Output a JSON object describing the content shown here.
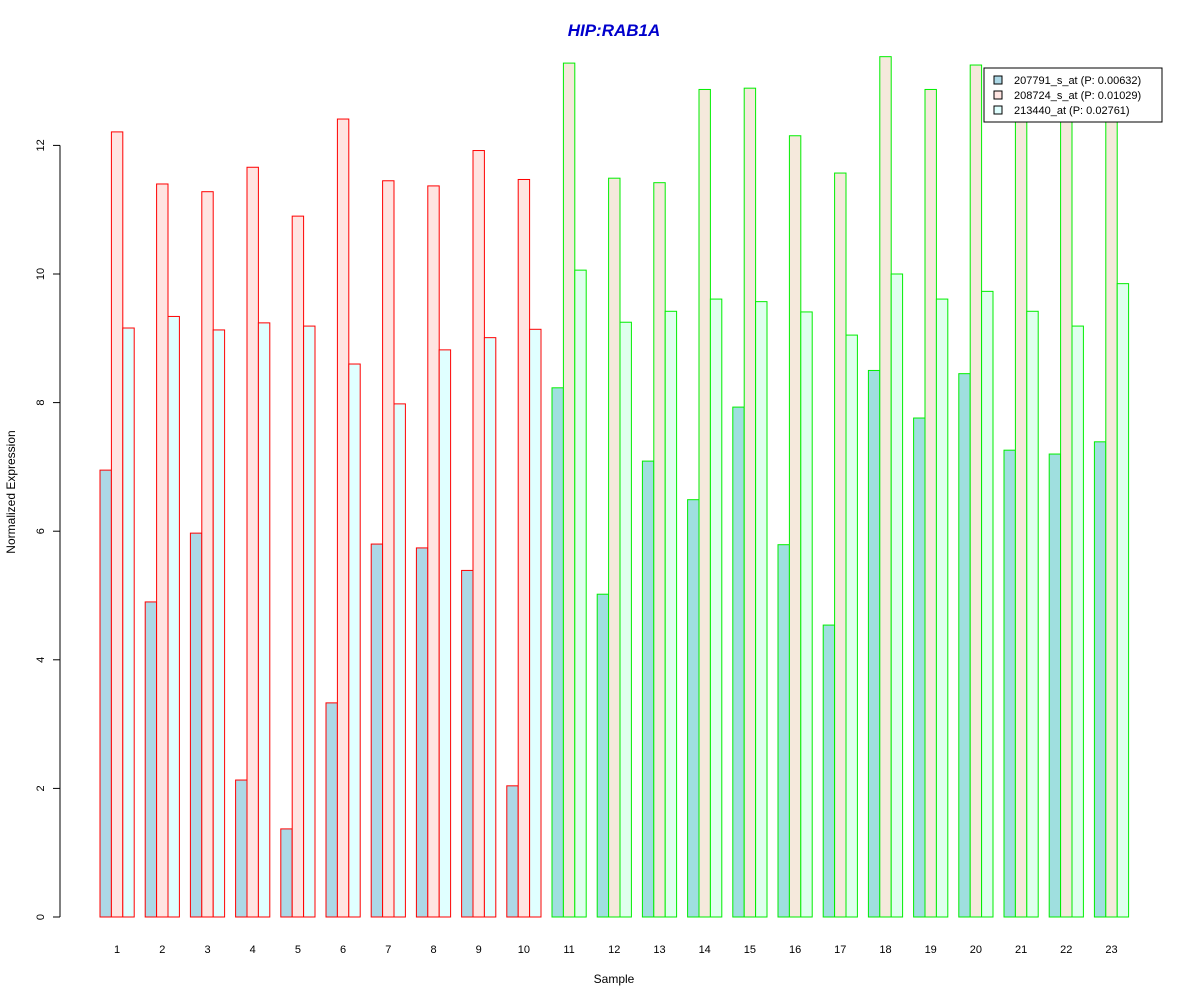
{
  "chart_data": {
    "type": "bar",
    "title": "HIP:RAB1A",
    "xlabel": "Sample",
    "ylabel": "Normalized Expression",
    "ylim": [
      0,
      13.5
    ],
    "yticks": [
      0,
      2,
      4,
      6,
      8,
      10,
      12
    ],
    "grid": false,
    "legend_position": "top-right",
    "categories": [
      "1",
      "2",
      "3",
      "4",
      "5",
      "6",
      "7",
      "8",
      "9",
      "10",
      "11",
      "12",
      "13",
      "14",
      "15",
      "16",
      "17",
      "18",
      "19",
      "20",
      "21",
      "22",
      "23"
    ],
    "group_sizes": [
      10,
      13
    ],
    "group_border_colors": [
      "#ff0000",
      "#00ee00"
    ],
    "series": [
      {
        "name": "207791_s_at (P: 0.00632)",
        "fill_colors": [
          "#add8e6",
          "#9fdfdf"
        ],
        "values": [
          6.95,
          4.9,
          5.97,
          2.13,
          1.37,
          3.33,
          5.8,
          5.74,
          5.39,
          2.04,
          8.23,
          5.02,
          7.09,
          6.49,
          7.93,
          5.79,
          4.54,
          8.5,
          7.76,
          8.45,
          7.26,
          7.2,
          7.39
        ]
      },
      {
        "name": "208724_s_at (P: 0.01029)",
        "fill_colors": [
          "#ffe4e1",
          "#f5e9dc"
        ],
        "values": [
          12.21,
          11.4,
          11.28,
          11.66,
          10.9,
          12.41,
          11.45,
          11.37,
          11.92,
          11.47,
          13.28,
          11.49,
          11.42,
          12.87,
          12.89,
          12.15,
          11.57,
          13.38,
          12.87,
          13.25,
          12.6,
          12.6,
          12.6
        ]
      },
      {
        "name": "213440_at (P: 0.02761)",
        "fill_colors": [
          "#e0ffff",
          "#dfffee"
        ],
        "values": [
          9.16,
          9.34,
          9.13,
          9.24,
          9.19,
          8.6,
          7.98,
          8.82,
          9.01,
          9.14,
          10.06,
          9.25,
          9.42,
          9.61,
          9.57,
          9.41,
          9.05,
          10.0,
          9.61,
          9.73,
          9.42,
          9.19,
          9.85
        ]
      }
    ],
    "colors": {
      "title": "#0000cc",
      "axis": "#000000",
      "legend_border": "#000000"
    }
  }
}
